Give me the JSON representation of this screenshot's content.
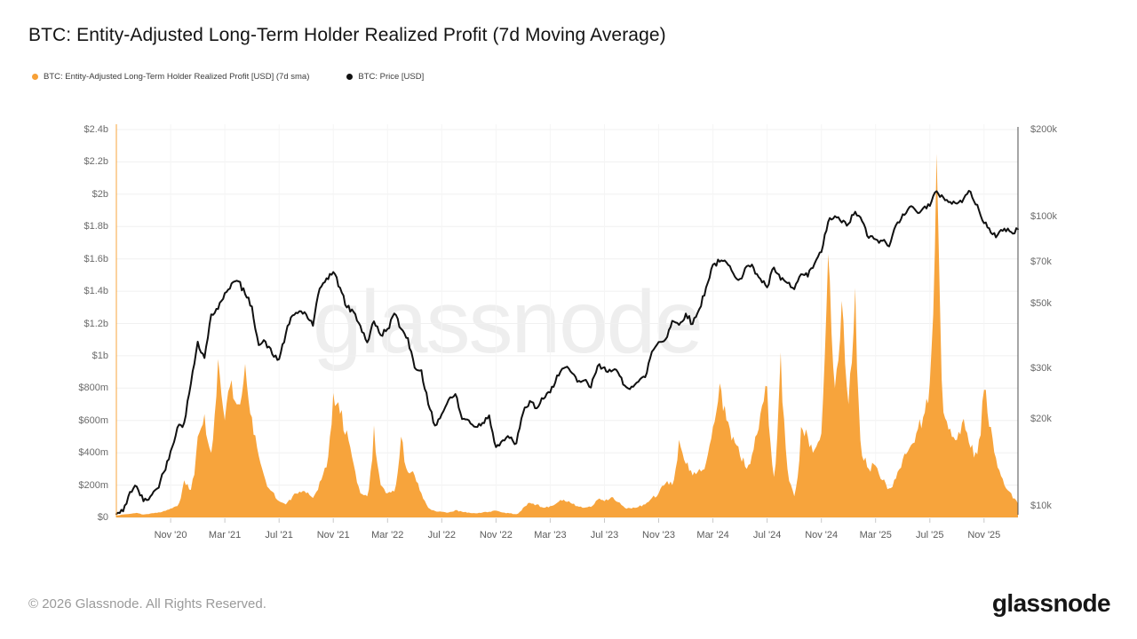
{
  "header": {
    "title": "BTC: Entity-Adjusted Long-Term Holder Realized Profit (7d Moving Average)"
  },
  "legend": {
    "items": [
      {
        "label": "BTC: Entity-Adjusted Long-Term Holder Realized Profit [USD] (7d sma)",
        "color": "#f7a036",
        "marker": "dot"
      },
      {
        "label": "BTC: Price [USD]",
        "color": "#111111",
        "marker": "dot"
      }
    ]
  },
  "watermark": {
    "text": "glassnode"
  },
  "footer": {
    "copyright": "© 2026 Glassnode. All Rights Reserved.",
    "logo_text": "glassnode"
  },
  "chart_data": {
    "type": "area+line",
    "title": "BTC: Entity-Adjusted Long-Term Holder Realized Profit (7d Moving Average)",
    "x_axis": {
      "start": "Jul 2020",
      "end": "Jan 2026",
      "unit": "months since Jul 2020",
      "ticks": [
        {
          "m": 4,
          "label": "Nov '20"
        },
        {
          "m": 8,
          "label": "Mar '21"
        },
        {
          "m": 12,
          "label": "Jul '21"
        },
        {
          "m": 16,
          "label": "Nov '21"
        },
        {
          "m": 20,
          "label": "Mar '22"
        },
        {
          "m": 24,
          "label": "Jul '22"
        },
        {
          "m": 28,
          "label": "Nov '22"
        },
        {
          "m": 32,
          "label": "Mar '23"
        },
        {
          "m": 36,
          "label": "Jul '23"
        },
        {
          "m": 40,
          "label": "Nov '23"
        },
        {
          "m": 44,
          "label": "Mar '24"
        },
        {
          "m": 48,
          "label": "Jul '24"
        },
        {
          "m": 52,
          "label": "Nov '24"
        },
        {
          "m": 56,
          "label": "Mar '25"
        },
        {
          "m": 60,
          "label": "Jul '25"
        },
        {
          "m": 64,
          "label": "Nov '25"
        }
      ]
    },
    "left_axis": {
      "series": "Realized Profit [USD]",
      "scale": "linear",
      "min_musd": 0,
      "max_musd": 2400,
      "ticks": [
        {
          "v": 2400,
          "label": "$2.4b"
        },
        {
          "v": 2200,
          "label": "$2.2b"
        },
        {
          "v": 2000,
          "label": "$2b"
        },
        {
          "v": 1800,
          "label": "$1.8b"
        },
        {
          "v": 1600,
          "label": "$1.6b"
        },
        {
          "v": 1400,
          "label": "$1.4b"
        },
        {
          "v": 1200,
          "label": "$1.2b"
        },
        {
          "v": 1000,
          "label": "$1b"
        },
        {
          "v": 800,
          "label": "$800m"
        },
        {
          "v": 600,
          "label": "$600m"
        },
        {
          "v": 400,
          "label": "$400m"
        },
        {
          "v": 200,
          "label": "$200m"
        },
        {
          "v": 0,
          "label": "$0"
        }
      ]
    },
    "right_axis": {
      "series": "BTC Price [USD]",
      "scale": "log",
      "ticks": [
        {
          "v": 200,
          "label": "$200k"
        },
        {
          "v": 100,
          "label": "$100k"
        },
        {
          "v": 70,
          "label": "$70k"
        },
        {
          "v": 50,
          "label": "$50k"
        },
        {
          "v": 30,
          "label": "$30k"
        },
        {
          "v": 20,
          "label": "$20k"
        },
        {
          "v": 10,
          "label": "$10k"
        }
      ]
    },
    "grid": {
      "horizontal": "every $200m",
      "vertical": "every 4 months"
    },
    "series": [
      {
        "name": "BTC: Entity-Adjusted Long-Term Holder Realized Profit [USD] (7d sma)",
        "type": "area",
        "axis": "left",
        "color": "#f7a43c",
        "unit": "million USD",
        "start_month": 0,
        "step_months": 0.5,
        "values": [
          12,
          18,
          22,
          28,
          18,
          24,
          28,
          40,
          55,
          70,
          230,
          170,
          500,
          640,
          400,
          980,
          600,
          850,
          700,
          950,
          620,
          380,
          230,
          160,
          100,
          80,
          130,
          160,
          150,
          120,
          220,
          310,
          770,
          640,
          540,
          330,
          150,
          130,
          570,
          200,
          150,
          160,
          500,
          280,
          260,
          150,
          60,
          40,
          35,
          30,
          45,
          35,
          30,
          25,
          30,
          35,
          42,
          30,
          25,
          20,
          60,
          90,
          80,
          60,
          70,
          90,
          110,
          90,
          70,
          60,
          65,
          110,
          100,
          125,
          95,
          60,
          55,
          65,
          80,
          120,
          150,
          210,
          200,
          480,
          330,
          260,
          300,
          340,
          560,
          830,
          600,
          500,
          380,
          300,
          420,
          640,
          810,
          250,
          1020,
          300,
          130,
          560,
          500,
          420,
          520,
          1630,
          800,
          1340,
          700,
          1420,
          380,
          300,
          320,
          230,
          180,
          240,
          360,
          430,
          520,
          620,
          840,
          2250,
          650,
          550,
          480,
          610,
          430,
          390,
          790,
          560,
          310,
          200,
          150,
          85
        ]
      },
      {
        "name": "BTC: Price [USD]",
        "type": "line",
        "axis": "right",
        "color": "#111111",
        "unit": "thousand USD",
        "start_month": 0,
        "step_months": 0.5,
        "values": [
          9.4,
          9.6,
          11.2,
          11.7,
          10.4,
          10.8,
          11.5,
          13.1,
          15.5,
          18.7,
          19.4,
          26.5,
          37,
          32.5,
          46,
          48,
          54.5,
          58.8,
          59.8,
          54,
          49,
          36,
          37,
          33.5,
          32.2,
          39.5,
          45.6,
          47.2,
          46,
          42,
          56.5,
          61.3,
          64.4,
          56.9,
          48.6,
          46.9,
          42,
          36.8,
          43.5,
          39,
          41,
          46.3,
          41,
          38.1,
          30.1,
          29.5,
          22.5,
          19,
          20.8,
          23.3,
          24.4,
          20,
          19.8,
          18.8,
          19.4,
          20.6,
          16,
          16.9,
          17.2,
          16.5,
          21,
          23.1,
          21.8,
          23.5,
          24.7,
          28.3,
          30,
          29.2,
          26.9,
          27.2,
          25.7,
          30.5,
          30.2,
          29.2,
          29,
          26.1,
          25.9,
          26.9,
          27.9,
          34.2,
          36.9,
          37.7,
          43.7,
          42.3,
          46.3,
          42.6,
          48,
          57,
          68.3,
          69.9,
          69.5,
          63.7,
          61,
          67.5,
          66.5,
          61,
          57,
          66.8,
          60.5,
          59,
          56.2,
          63.3,
          62.1,
          69,
          75.5,
          96,
          100.5,
          95.5,
          94.5,
          104,
          96.5,
          84.5,
          83.5,
          82.5,
          79,
          93.5,
          102,
          108,
          104.5,
          107,
          109,
          122.5,
          116.5,
          112.5,
          111,
          115.5,
          122,
          110,
          95,
          88,
          86.5,
          91,
          88.5,
          90.5
        ]
      }
    ]
  }
}
